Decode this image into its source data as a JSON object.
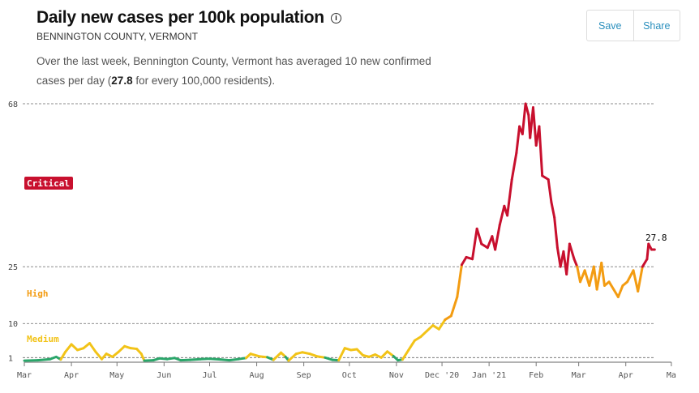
{
  "header": {
    "title": "Daily new cases per 100k population",
    "info_icon": "info-icon",
    "subtitle": "BENNINGTON COUNTY, VERMONT",
    "desc_pre": "Over the last week, Bennington County, Vermont has averaged 10 new confirmed cases per day (",
    "desc_bold": "27.8",
    "desc_post": " for every 100,000 residents)."
  },
  "toolbar": {
    "save_label": "Save",
    "share_label": "Share"
  },
  "colors": {
    "critical": "#c8102e",
    "high": "#f39c12",
    "medium": "#f2c318",
    "low": "#2aa66a"
  },
  "chart_data": {
    "type": "line",
    "ylim": [
      0,
      68
    ],
    "yticks": [
      1,
      10,
      25,
      68
    ],
    "xticks": [
      "Mar",
      "Apr",
      "May",
      "Jun",
      "Jul",
      "Aug",
      "Sep",
      "Oct",
      "Nov",
      "Dec '20",
      "Jan '21",
      "Feb",
      "Mar",
      "Apr",
      "Ma"
    ],
    "bands": [
      {
        "label": "Critical",
        "min": 25
      },
      {
        "label": "High",
        "min": 10
      },
      {
        "label": "Medium",
        "min": 1
      }
    ],
    "last_value_label": "27.8",
    "points": [
      [
        "2020-03-01",
        0.2
      ],
      [
        "2020-03-10",
        0.3
      ],
      [
        "2020-03-18",
        0.6
      ],
      [
        "2020-03-22",
        1.2
      ],
      [
        "2020-03-25",
        0.5
      ],
      [
        "2020-03-28",
        2.5
      ],
      [
        "2020-04-01",
        4.5
      ],
      [
        "2020-04-05",
        3
      ],
      [
        "2020-04-09",
        3.5
      ],
      [
        "2020-04-13",
        4.8
      ],
      [
        "2020-04-17",
        2.5
      ],
      [
        "2020-04-21",
        0.6
      ],
      [
        "2020-04-24",
        2
      ],
      [
        "2020-04-28",
        1.2
      ],
      [
        "2020-05-02",
        2.5
      ],
      [
        "2020-05-06",
        4
      ],
      [
        "2020-05-10",
        3.5
      ],
      [
        "2020-05-14",
        3.3
      ],
      [
        "2020-05-17",
        2
      ],
      [
        "2020-05-19",
        0.2
      ],
      [
        "2020-05-25",
        0.3
      ],
      [
        "2020-05-29",
        0.8
      ],
      [
        "2020-06-03",
        0.6
      ],
      [
        "2020-06-08",
        0.9
      ],
      [
        "2020-06-12",
        0.3
      ],
      [
        "2020-06-18",
        0.4
      ],
      [
        "2020-06-25",
        0.6
      ],
      [
        "2020-07-01",
        0.7
      ],
      [
        "2020-07-08",
        0.5
      ],
      [
        "2020-07-14",
        0.3
      ],
      [
        "2020-07-20",
        0.6
      ],
      [
        "2020-07-25",
        0.9
      ],
      [
        "2020-07-28",
        2
      ],
      [
        "2020-08-03",
        1.3
      ],
      [
        "2020-08-08",
        1.1
      ],
      [
        "2020-08-12",
        0.4
      ],
      [
        "2020-08-17",
        2.3
      ],
      [
        "2020-08-20",
        1.2
      ],
      [
        "2020-08-22",
        0.2
      ],
      [
        "2020-08-27",
        2
      ],
      [
        "2020-08-31",
        2.4
      ],
      [
        "2020-09-05",
        2
      ],
      [
        "2020-09-10",
        1.3
      ],
      [
        "2020-09-15",
        1
      ],
      [
        "2020-09-20",
        0.4
      ],
      [
        "2020-09-24",
        0.3
      ],
      [
        "2020-09-28",
        3.5
      ],
      [
        "2020-10-02",
        3
      ],
      [
        "2020-10-06",
        3.2
      ],
      [
        "2020-10-10",
        1.6
      ],
      [
        "2020-10-14",
        1.2
      ],
      [
        "2020-10-18",
        1.8
      ],
      [
        "2020-10-22",
        1
      ],
      [
        "2020-10-26",
        2.6
      ],
      [
        "2020-10-30",
        1.4
      ],
      [
        "2020-11-02",
        0.3
      ],
      [
        "2020-11-05",
        0.5
      ],
      [
        "2020-11-09",
        3
      ],
      [
        "2020-11-13",
        5.5
      ],
      [
        "2020-11-17",
        6.5
      ],
      [
        "2020-11-21",
        8
      ],
      [
        "2020-11-25",
        9.5
      ],
      [
        "2020-11-29",
        8.5
      ],
      [
        "2020-12-03",
        11
      ],
      [
        "2020-12-07",
        12
      ],
      [
        "2020-12-11",
        17
      ],
      [
        "2020-12-14",
        25.5
      ],
      [
        "2020-12-17",
        27.5
      ],
      [
        "2020-12-21",
        27
      ],
      [
        "2020-12-24",
        35
      ],
      [
        "2020-12-27",
        31
      ],
      [
        "2020-12-31",
        30
      ],
      [
        "2021-01-03",
        33
      ],
      [
        "2021-01-05",
        29.5
      ],
      [
        "2021-01-08",
        36
      ],
      [
        "2021-01-11",
        41
      ],
      [
        "2021-01-13",
        38.5
      ],
      [
        "2021-01-16",
        48
      ],
      [
        "2021-01-19",
        55
      ],
      [
        "2021-01-21",
        62
      ],
      [
        "2021-01-23",
        60
      ],
      [
        "2021-01-25",
        68
      ],
      [
        "2021-01-27",
        65
      ],
      [
        "2021-01-28",
        59
      ],
      [
        "2021-01-30",
        67
      ],
      [
        "2021-02-01",
        57
      ],
      [
        "2021-02-03",
        62
      ],
      [
        "2021-02-05",
        49
      ],
      [
        "2021-02-09",
        48
      ],
      [
        "2021-02-11",
        42
      ],
      [
        "2021-02-13",
        38
      ],
      [
        "2021-02-15",
        30
      ],
      [
        "2021-02-17",
        25
      ],
      [
        "2021-02-19",
        29
      ],
      [
        "2021-02-21",
        23
      ],
      [
        "2021-02-23",
        31
      ],
      [
        "2021-02-26",
        27
      ],
      [
        "2021-02-28",
        25
      ],
      [
        "2021-03-02",
        21
      ],
      [
        "2021-03-05",
        24
      ],
      [
        "2021-03-08",
        20
      ],
      [
        "2021-03-11",
        25
      ],
      [
        "2021-03-13",
        19
      ],
      [
        "2021-03-16",
        26
      ],
      [
        "2021-03-18",
        20
      ],
      [
        "2021-03-21",
        21
      ],
      [
        "2021-03-24",
        19
      ],
      [
        "2021-03-27",
        17
      ],
      [
        "2021-03-30",
        20
      ],
      [
        "2021-04-02",
        21
      ],
      [
        "2021-04-06",
        24
      ],
      [
        "2021-04-09",
        18.5
      ],
      [
        "2021-04-12",
        25
      ],
      [
        "2021-04-15",
        27
      ],
      [
        "2021-04-16",
        31
      ],
      [
        "2021-04-18",
        29.5
      ],
      [
        "2021-04-20",
        29.5
      ],
      [
        "2021-04-22",
        27.8
      ]
    ]
  }
}
